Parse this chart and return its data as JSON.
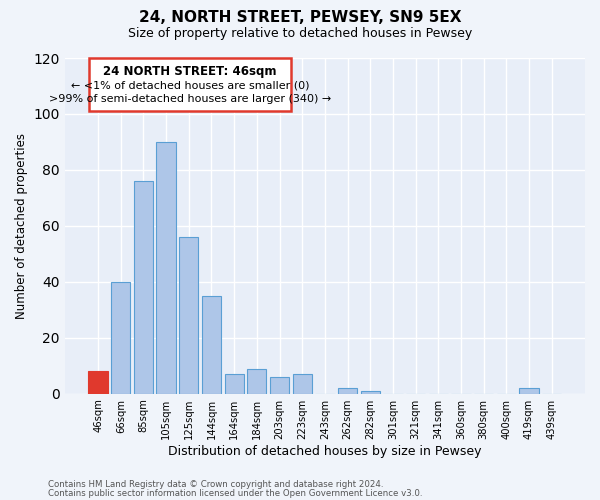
{
  "title": "24, NORTH STREET, PEWSEY, SN9 5EX",
  "subtitle": "Size of property relative to detached houses in Pewsey",
  "xlabel": "Distribution of detached houses by size in Pewsey",
  "ylabel": "Number of detached properties",
  "bar_color": "#aec6e8",
  "bar_edge_color": "#5a9fd4",
  "highlight_color": "#e0392d",
  "background_color": "#f0f4fa",
  "plot_bg_color": "#e8eef8",
  "categories": [
    "46sqm",
    "66sqm",
    "85sqm",
    "105sqm",
    "125sqm",
    "144sqm",
    "164sqm",
    "184sqm",
    "203sqm",
    "223sqm",
    "243sqm",
    "262sqm",
    "282sqm",
    "301sqm",
    "321sqm",
    "341sqm",
    "360sqm",
    "380sqm",
    "400sqm",
    "419sqm",
    "439sqm"
  ],
  "values": [
    8,
    40,
    76,
    90,
    56,
    35,
    7,
    9,
    6,
    7,
    0,
    2,
    1,
    0,
    0,
    0,
    0,
    0,
    0,
    2,
    0
  ],
  "highlight_bar_index": 0,
  "annotation_title": "24 NORTH STREET: 46sqm",
  "annotation_line1": "← <1% of detached houses are smaller (0)",
  "annotation_line2": ">99% of semi-detached houses are larger (340) →",
  "ylim": [
    0,
    120
  ],
  "yticks": [
    0,
    20,
    40,
    60,
    80,
    100,
    120
  ],
  "footer_line1": "Contains HM Land Registry data © Crown copyright and database right 2024.",
  "footer_line2": "Contains public sector information licensed under the Open Government Licence v3.0."
}
